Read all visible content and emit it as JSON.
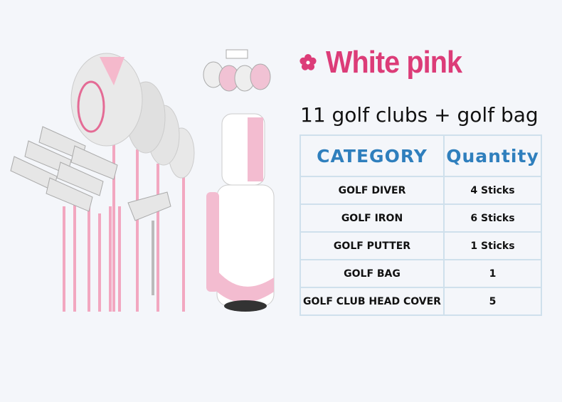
{
  "title": "White pink",
  "subtitle": "11 golf clubs + golf bag",
  "colors": {
    "accent": "#dc3c78",
    "header": "#2f7fbd",
    "border": "#cfe0ec",
    "background": "#f4f6fa"
  },
  "table": {
    "headers": [
      "CATEGORY",
      "Quantity"
    ],
    "rows": [
      {
        "category": "GOLF DIVER",
        "quantity": "4 Sticks"
      },
      {
        "category": "GOLF IRON",
        "quantity": "6 Sticks"
      },
      {
        "category": "GOLF PUTTER",
        "quantity": "1 Sticks"
      },
      {
        "category": "GOLF BAG",
        "quantity": "1"
      },
      {
        "category": "GOLF CLUB HEAD COVER",
        "quantity": "5"
      }
    ]
  }
}
